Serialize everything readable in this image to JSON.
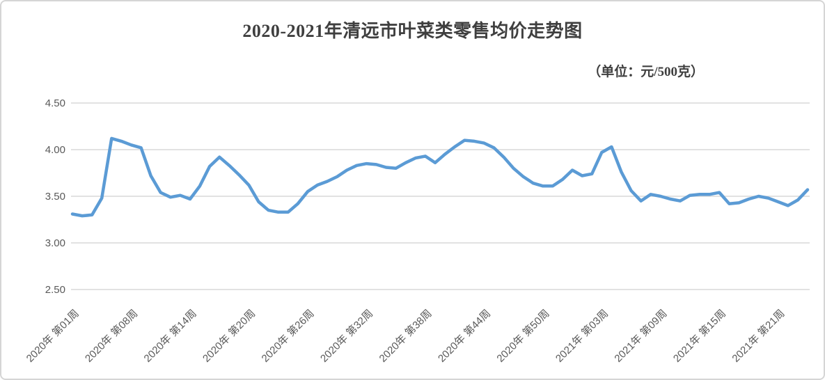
{
  "chart_data": {
    "type": "line",
    "title": "2020-2021年清远市叶菜类零售均价走势图",
    "unit_label": "（单位：元/500克）",
    "xlabel": "",
    "ylabel": "",
    "ylim": [
      2.5,
      4.5
    ],
    "grid": true,
    "legend": false,
    "y_ticks": [
      "4.50",
      "4.00",
      "3.50",
      "3.00",
      "2.50"
    ],
    "x_tick_labels": [
      "2020年 第01周",
      "2020年 第08周",
      "2020年 第14周",
      "2020年 第20周",
      "2020年 第26周",
      "2020年 第32周",
      "2020年 第38周",
      "2020年 第44周",
      "2020年 第50周",
      "2021年 第03周",
      "2021年 第09周",
      "2021年 第15周",
      "2021年 第21周"
    ],
    "x_tick_interval": 6,
    "series": [
      {
        "name": "叶菜类零售均价",
        "values": [
          3.31,
          3.29,
          3.3,
          3.48,
          4.12,
          4.09,
          4.05,
          4.02,
          3.72,
          3.54,
          3.49,
          3.51,
          3.47,
          3.61,
          3.82,
          3.92,
          3.83,
          3.73,
          3.62,
          3.44,
          3.35,
          3.33,
          3.33,
          3.42,
          3.55,
          3.62,
          3.66,
          3.71,
          3.78,
          3.83,
          3.85,
          3.84,
          3.81,
          3.8,
          3.86,
          3.91,
          3.93,
          3.86,
          3.95,
          4.03,
          4.1,
          4.09,
          4.07,
          4.02,
          3.92,
          3.8,
          3.71,
          3.64,
          3.61,
          3.61,
          3.68,
          3.78,
          3.72,
          3.74,
          3.97,
          4.03,
          3.76,
          3.56,
          3.45,
          3.52,
          3.5,
          3.47,
          3.45,
          3.51,
          3.52,
          3.52,
          3.54,
          3.42,
          3.43,
          3.47,
          3.5,
          3.48,
          3.44,
          3.4,
          3.46,
          3.57
        ]
      }
    ],
    "colors": {
      "line": "#5B9BD5",
      "gridline": "#D9D9D9",
      "tick_text": "#595959",
      "title_text": "#3F3F3F",
      "frame_border": "#D5D5D5",
      "background": "#FFFFFF"
    }
  }
}
